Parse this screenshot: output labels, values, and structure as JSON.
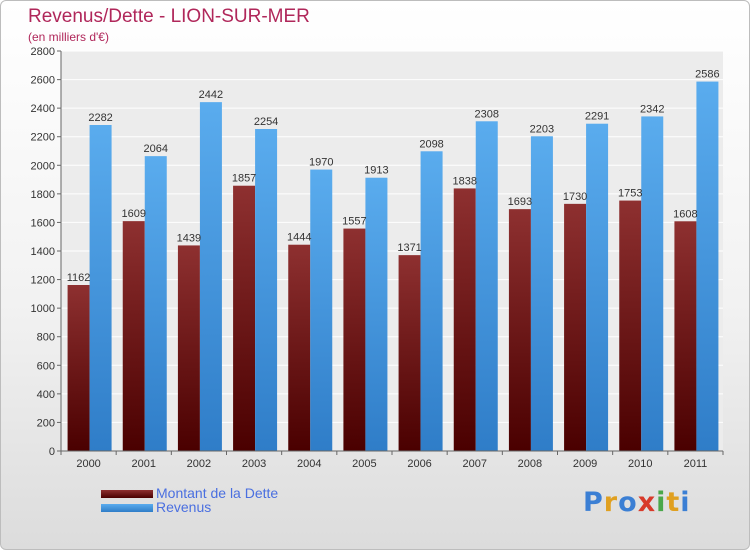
{
  "chart_data": {
    "type": "bar",
    "title": "Revenus/Dette - LION-SUR-MER",
    "subtitle": "(en milliers d'€)",
    "categories": [
      "2000",
      "2001",
      "2002",
      "2003",
      "2004",
      "2005",
      "2006",
      "2007",
      "2008",
      "2009",
      "2010",
      "2011"
    ],
    "series": [
      {
        "name": "Montant de la Dette",
        "color": "#7a1a1a",
        "values": [
          1162,
          1609,
          1439,
          1857,
          1444,
          1557,
          1371,
          1838,
          1693,
          1730,
          1753,
          1608
        ]
      },
      {
        "name": "Revenus",
        "color": "#4a9fe8",
        "values": [
          2282,
          2064,
          2442,
          2254,
          1970,
          1913,
          2098,
          2308,
          2203,
          2291,
          2342,
          2586
        ]
      }
    ],
    "ylim": [
      0,
      2800
    ],
    "yticks": [
      0,
      200,
      400,
      600,
      800,
      1000,
      1200,
      1400,
      1600,
      1800,
      2000,
      2200,
      2400,
      2600,
      2800
    ],
    "grid": true,
    "legend_position": "bottom-left"
  },
  "logo": {
    "letters": [
      "P",
      "r",
      "o",
      "x",
      "i",
      "t",
      "i"
    ],
    "colors": [
      "#3b7fd4",
      "#e0a020",
      "#3b7fd4",
      "#d83a2a",
      "#4aa84a",
      "#e0a020",
      "#3b7fd4"
    ]
  }
}
